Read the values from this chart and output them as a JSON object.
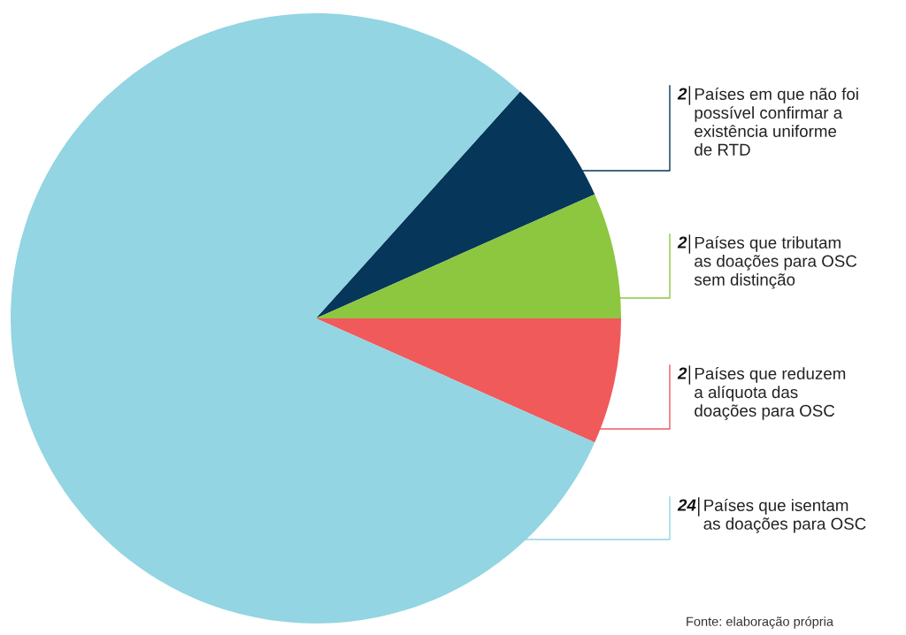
{
  "chart_data": {
    "type": "pie",
    "categories": [
      "Países em que não foi\npossível confirmar a\nexistência uniforme\nde RTD",
      "Países que tributam\nas doações para OSC\nsem distinção",
      "Países que reduzem\na alíquota das\ndoações para OSC",
      "Países que isentam\nas doações para OSC"
    ],
    "values": [
      2,
      2,
      2,
      24
    ],
    "colors": [
      "#06375a",
      "#8dc63f",
      "#f05a5b",
      "#93d5e2"
    ],
    "data_labels": true,
    "annotations": [
      "Fonte: elaboração própria"
    ]
  }
}
